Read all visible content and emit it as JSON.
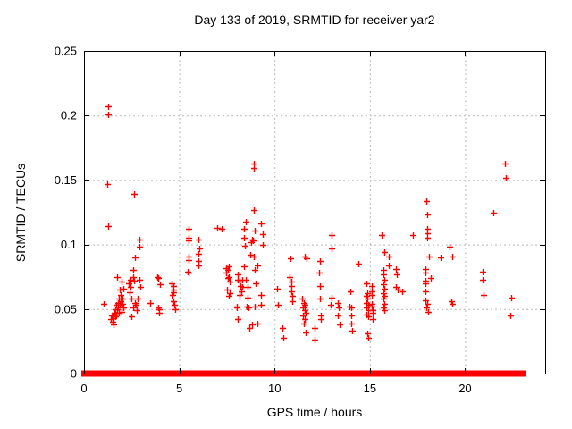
{
  "chart_data": {
    "type": "scatter",
    "title": "Day 133 of 2019, SRMTID for receiver yar2",
    "xlabel": "GPS time / hours",
    "ylabel": "SRMTID / TECUs",
    "xlim": [
      0,
      24.2
    ],
    "ylim": [
      0,
      0.25
    ],
    "xticks": {
      "values": [
        0,
        5,
        10,
        15,
        20
      ],
      "labels": [
        "0",
        "5",
        "10",
        "15",
        "20"
      ]
    },
    "yticks": {
      "values": [
        0,
        0.05,
        0.1,
        0.15,
        0.2,
        0.25
      ],
      "labels": [
        "0",
        "0.05",
        "0.1",
        "0.15",
        "0.2",
        "0.25"
      ]
    },
    "grid": true,
    "legend_position": "none",
    "marker": {
      "shape": "plus",
      "color": "#ff0000",
      "size": 7
    },
    "grid_color": "#b8b8b8",
    "axis_color": "#000000",
    "series": [
      {
        "name": "SRMTID",
        "points": [
          [
            1.25,
            0.207
          ],
          [
            1.28,
            0.201
          ],
          [
            1.22,
            0.147
          ],
          [
            1.25,
            0.114
          ],
          [
            1.03,
            0.054
          ],
          [
            2.62,
            0.139
          ],
          [
            1.42,
            0.042
          ],
          [
            1.47,
            0.045
          ],
          [
            1.5,
            0.04
          ],
          [
            1.52,
            0.045
          ],
          [
            1.55,
            0.038
          ],
          [
            1.57,
            0.043
          ],
          [
            1.6,
            0.047
          ],
          [
            1.63,
            0.05
          ],
          [
            1.65,
            0.044
          ],
          [
            1.68,
            0.053
          ],
          [
            1.7,
            0.046
          ],
          [
            1.73,
            0.05
          ],
          [
            1.75,
            0.075
          ],
          [
            1.77,
            0.055
          ],
          [
            1.8,
            0.051
          ],
          [
            1.82,
            0.047
          ],
          [
            1.85,
            0.058
          ],
          [
            1.87,
            0.065
          ],
          [
            1.88,
            0.053
          ],
          [
            1.9,
            0.061
          ],
          [
            1.93,
            0.056
          ],
          [
            1.95,
            0.071
          ],
          [
            1.97,
            0.048
          ],
          [
            2.0,
            0.058
          ],
          [
            2.02,
            0.054
          ],
          [
            2.05,
            0.066
          ],
          [
            2.08,
            0.051
          ],
          [
            2.33,
            0.07
          ],
          [
            2.38,
            0.063
          ],
          [
            2.43,
            0.073
          ],
          [
            2.45,
            0.067
          ],
          [
            2.48,
            0.058
          ],
          [
            2.5,
            0.044
          ],
          [
            2.57,
            0.051
          ],
          [
            2.57,
            0.08
          ],
          [
            2.6,
            0.075
          ],
          [
            2.62,
            0.072
          ],
          [
            2.65,
            0.09
          ],
          [
            2.67,
            0.055
          ],
          [
            2.72,
            0.053
          ],
          [
            2.75,
            0.049
          ],
          [
            2.8,
            0.058
          ],
          [
            2.9,
            0.104
          ],
          [
            2.9,
            0.098
          ],
          [
            2.92,
            0.073
          ],
          [
            2.95,
            0.067
          ],
          [
            3.47,
            0.055
          ],
          [
            3.84,
            0.075
          ],
          [
            3.89,
            0.074
          ],
          [
            3.89,
            0.051
          ],
          [
            3.93,
            0.05
          ],
          [
            3.98,
            0.069
          ],
          [
            3.96,
            0.047
          ],
          [
            4.59,
            0.07
          ],
          [
            4.64,
            0.061
          ],
          [
            4.69,
            0.068
          ],
          [
            4.69,
            0.065
          ],
          [
            4.69,
            0.063
          ],
          [
            4.69,
            0.056
          ],
          [
            4.73,
            0.053
          ],
          [
            4.78,
            0.05
          ],
          [
            5.44,
            0.079
          ],
          [
            5.47,
            0.105
          ],
          [
            5.47,
            0.103
          ],
          [
            5.47,
            0.088
          ],
          [
            5.47,
            0.078
          ],
          [
            5.51,
            0.112
          ],
          [
            5.51,
            0.091
          ],
          [
            5.98,
            0.104
          ],
          [
            5.98,
            0.093
          ],
          [
            5.98,
            0.087
          ],
          [
            5.98,
            0.084
          ],
          [
            6.07,
            0.097
          ],
          [
            7.01,
            0.113
          ],
          [
            7.24,
            0.112
          ],
          [
            7.45,
            0.082
          ],
          [
            7.48,
            0.078
          ],
          [
            7.52,
            0.065
          ],
          [
            7.57,
            0.08
          ],
          [
            7.57,
            0.074
          ],
          [
            7.59,
            0.075
          ],
          [
            7.62,
            0.083
          ],
          [
            7.62,
            0.06
          ],
          [
            7.64,
            0.071
          ],
          [
            7.64,
            0.062
          ],
          [
            8.01,
            0.052
          ],
          [
            8.04,
            0.051
          ],
          [
            8.06,
            0.077
          ],
          [
            8.06,
            0.073
          ],
          [
            8.08,
            0.042
          ],
          [
            8.15,
            0.071
          ],
          [
            8.15,
            0.061
          ],
          [
            8.2,
            0.068
          ],
          [
            8.25,
            0.064
          ],
          [
            8.3,
            0.073
          ],
          [
            8.3,
            0.067
          ],
          [
            8.4,
            0.112
          ],
          [
            8.4,
            0.105
          ],
          [
            8.4,
            0.083
          ],
          [
            8.45,
            0.099
          ],
          [
            8.5,
            0.118
          ],
          [
            8.5,
            0.073
          ],
          [
            8.55,
            0.052
          ],
          [
            8.6,
            0.067
          ],
          [
            8.6,
            0.059
          ],
          [
            8.62,
            0.051
          ],
          [
            8.67,
            0.035
          ],
          [
            8.7,
            0.092
          ],
          [
            8.75,
            0.102
          ],
          [
            8.8,
            0.104
          ],
          [
            8.8,
            0.038
          ],
          [
            8.85,
            0.103
          ],
          [
            8.9,
            0.163
          ],
          [
            8.9,
            0.159
          ],
          [
            8.9,
            0.127
          ],
          [
            8.9,
            0.091
          ],
          [
            8.95,
            0.111
          ],
          [
            8.95,
            0.08
          ],
          [
            8.95,
            0.052
          ],
          [
            9.0,
            0.07
          ],
          [
            9.1,
            0.084
          ],
          [
            9.1,
            0.039
          ],
          [
            9.3,
            0.116
          ],
          [
            9.3,
            0.061
          ],
          [
            9.3,
            0.053
          ],
          [
            9.4,
            0.108
          ],
          [
            9.4,
            0.1
          ],
          [
            10.15,
            0.066
          ],
          [
            10.2,
            0.053
          ],
          [
            10.4,
            0.035
          ],
          [
            10.45,
            0.028
          ],
          [
            10.8,
            0.075
          ],
          [
            10.85,
            0.089
          ],
          [
            10.9,
            0.071
          ],
          [
            10.9,
            0.068
          ],
          [
            10.9,
            0.064
          ],
          [
            10.95,
            0.06
          ],
          [
            10.95,
            0.056
          ],
          [
            11.45,
            0.058
          ],
          [
            11.5,
            0.051
          ],
          [
            11.5,
            0.045
          ],
          [
            11.55,
            0.055
          ],
          [
            11.55,
            0.039
          ],
          [
            11.58,
            0.091
          ],
          [
            11.6,
            0.053
          ],
          [
            11.6,
            0.049
          ],
          [
            11.6,
            0.042
          ],
          [
            11.62,
            0.047
          ],
          [
            11.63,
            0.032
          ],
          [
            11.68,
            0.089
          ],
          [
            12.1,
            0.035
          ],
          [
            12.12,
            0.026
          ],
          [
            12.35,
            0.078
          ],
          [
            12.4,
            0.087
          ],
          [
            12.4,
            0.068
          ],
          [
            12.4,
            0.058
          ],
          [
            12.42,
            0.045
          ],
          [
            12.42,
            0.042
          ],
          [
            12.95,
            0.053
          ],
          [
            13.0,
            0.107
          ],
          [
            13.0,
            0.097
          ],
          [
            13.0,
            0.059
          ],
          [
            13.3,
            0.055
          ],
          [
            13.32,
            0.045
          ],
          [
            13.38,
            0.051
          ],
          [
            13.42,
            0.038
          ],
          [
            13.92,
            0.052
          ],
          [
            13.97,
            0.064
          ],
          [
            14.0,
            0.051
          ],
          [
            14.0,
            0.045
          ],
          [
            14.02,
            0.039
          ],
          [
            14.05,
            0.033
          ],
          [
            14.4,
            0.085
          ],
          [
            14.8,
            0.07
          ],
          [
            14.82,
            0.06
          ],
          [
            14.82,
            0.055
          ],
          [
            14.83,
            0.051
          ],
          [
            14.84,
            0.046
          ],
          [
            14.85,
            0.031
          ],
          [
            14.88,
            0.062
          ],
          [
            14.88,
            0.058
          ],
          [
            14.9,
            0.053
          ],
          [
            14.9,
            0.049
          ],
          [
            14.92,
            0.044
          ],
          [
            14.93,
            0.028
          ],
          [
            15.1,
            0.068
          ],
          [
            15.1,
            0.064
          ],
          [
            15.1,
            0.061
          ],
          [
            15.12,
            0.054
          ],
          [
            15.12,
            0.052
          ],
          [
            15.13,
            0.049
          ],
          [
            15.13,
            0.047
          ],
          [
            15.14,
            0.042
          ],
          [
            15.6,
            0.107
          ],
          [
            15.78,
            0.094
          ],
          [
            15.7,
            0.08
          ],
          [
            15.72,
            0.077
          ],
          [
            15.78,
            0.073
          ],
          [
            15.72,
            0.069
          ],
          [
            15.78,
            0.066
          ],
          [
            15.72,
            0.062
          ],
          [
            15.78,
            0.06
          ],
          [
            15.72,
            0.058
          ],
          [
            15.78,
            0.054
          ],
          [
            15.72,
            0.051
          ],
          [
            15.78,
            0.049
          ],
          [
            16.0,
            0.091
          ],
          [
            16.0,
            0.084
          ],
          [
            16.38,
            0.081
          ],
          [
            16.4,
            0.077
          ],
          [
            16.38,
            0.067
          ],
          [
            16.45,
            0.065
          ],
          [
            16.68,
            0.064
          ],
          [
            17.28,
            0.107
          ],
          [
            17.9,
            0.081
          ],
          [
            17.9,
            0.078
          ],
          [
            17.92,
            0.072
          ],
          [
            17.92,
            0.07
          ],
          [
            17.92,
            0.064
          ],
          [
            17.93,
            0.057
          ],
          [
            17.95,
            0.051
          ],
          [
            17.97,
            0.134
          ],
          [
            18.0,
            0.123
          ],
          [
            18.0,
            0.112
          ],
          [
            18.0,
            0.109
          ],
          [
            18.02,
            0.105
          ],
          [
            18.02,
            0.054
          ],
          [
            18.05,
            0.048
          ],
          [
            18.08,
            0.091
          ],
          [
            18.22,
            0.074
          ],
          [
            18.7,
            0.09
          ],
          [
            19.18,
            0.098
          ],
          [
            19.32,
            0.091
          ],
          [
            19.28,
            0.056
          ],
          [
            19.3,
            0.054
          ],
          [
            20.92,
            0.079
          ],
          [
            20.92,
            0.073
          ],
          [
            20.98,
            0.061
          ],
          [
            21.5,
            0.125
          ],
          [
            22.1,
            0.163
          ],
          [
            22.12,
            0.152
          ],
          [
            22.4,
            0.059
          ],
          [
            22.35,
            0.045
          ]
        ]
      }
    ],
    "zero_value_band": {
      "value": 0,
      "hour_segments": [
        [
          0.0,
          0.06
        ],
        [
          0.2,
          0.32
        ],
        [
          0.4,
          0.45
        ],
        [
          0.52,
          6.78
        ],
        [
          6.95,
          7.18
        ],
        [
          7.28,
          8.45
        ],
        [
          8.62,
          9.28
        ],
        [
          9.45,
          10.05
        ],
        [
          10.22,
          10.62
        ],
        [
          10.72,
          10.88
        ],
        [
          10.98,
          11.35
        ],
        [
          11.45,
          12.88
        ],
        [
          13.02,
          13.28
        ],
        [
          13.45,
          14.65
        ],
        [
          14.78,
          14.98
        ],
        [
          15.18,
          15.38
        ],
        [
          15.5,
          15.85
        ],
        [
          16.02,
          16.45
        ],
        [
          16.58,
          17.28
        ],
        [
          17.42,
          18.28
        ],
        [
          18.42,
          18.58
        ],
        [
          18.68,
          19.45
        ],
        [
          19.62,
          19.88
        ],
        [
          19.98,
          20.78
        ],
        [
          20.88,
          21.28
        ],
        [
          21.42,
          21.78
        ],
        [
          21.88,
          23.05
        ]
      ]
    }
  }
}
